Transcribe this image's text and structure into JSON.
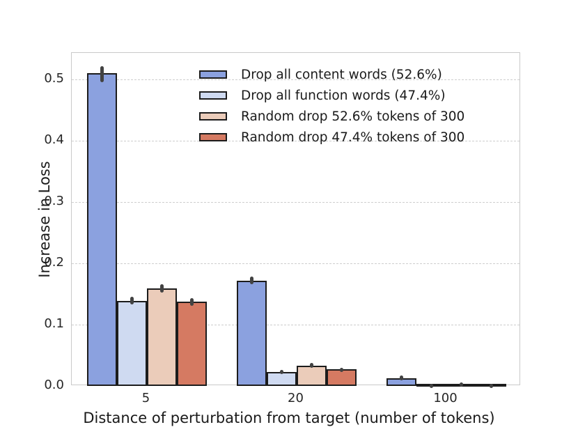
{
  "chart_data": {
    "type": "bar",
    "title": "",
    "xlabel": "Distance of perturbation from target (number of tokens)",
    "ylabel": "Increase in Loss",
    "categories": [
      "5",
      "20",
      "100"
    ],
    "yticks": [
      0.0,
      0.1,
      0.2,
      0.3,
      0.4,
      0.5
    ],
    "ytick_labels": [
      "0.0",
      "0.1",
      "0.2",
      "0.3",
      "0.4",
      "0.5"
    ],
    "ylim": [
      0,
      0.543
    ],
    "grid": "horizontal-dashed",
    "grid_color": "#cdcdcd",
    "spine_color": "#c9c9c9",
    "bar_edge_color": "#1c1c1c",
    "error_bar_color": "#424242",
    "legend_position": "upper-center-inside",
    "legend_frame": false,
    "series": [
      {
        "name": "Drop all content words (52.6%)",
        "color": "#8BA1DF",
        "values": [
          0.51,
          0.172,
          0.013
        ],
        "ci": [
          [
            0.495,
            0.522
          ],
          [
            0.166,
            0.178
          ],
          [
            0.009,
            0.017
          ]
        ]
      },
      {
        "name": "Drop all function words (47.4%)",
        "color": "#CFDAF1",
        "values": [
          0.139,
          0.023,
          0.002
        ],
        "ci": [
          [
            0.133,
            0.145
          ],
          [
            0.02,
            0.026
          ],
          [
            0.001,
            0.004
          ]
        ]
      },
      {
        "name": "Random drop 52.6% tokens of 300",
        "color": "#EBCCBA",
        "values": [
          0.159,
          0.033,
          0.004
        ],
        "ci": [
          [
            0.152,
            0.166
          ],
          [
            0.029,
            0.037
          ],
          [
            0.002,
            0.006
          ]
        ]
      },
      {
        "name": "Random drop 47.4% tokens of 300",
        "color": "#D57A62",
        "values": [
          0.137,
          0.027,
          0.003
        ],
        "ci": [
          [
            0.131,
            0.143
          ],
          [
            0.023,
            0.03
          ],
          [
            0.001,
            0.004
          ]
        ]
      }
    ]
  }
}
